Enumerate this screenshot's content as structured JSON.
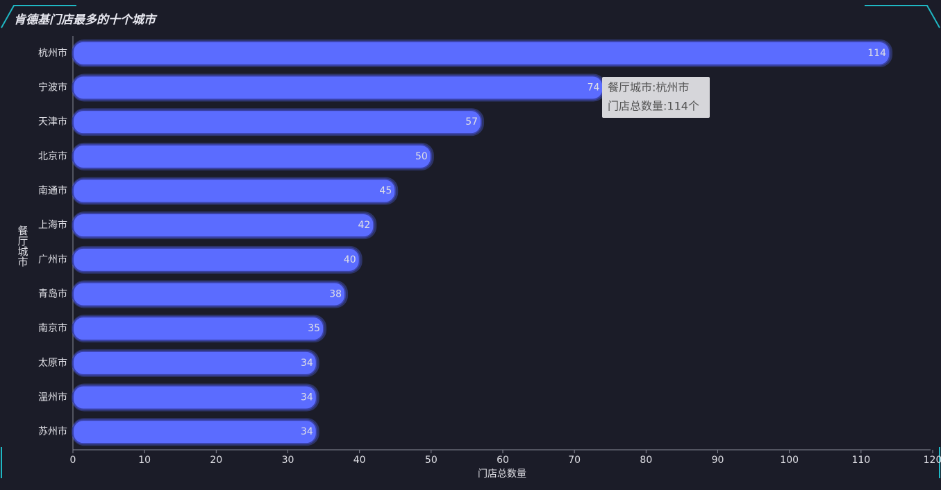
{
  "chart_data": {
    "type": "bar",
    "orientation": "horizontal",
    "title": "肯德基门店最多的十个城市",
    "x_label": "门店总数量",
    "y_label": "餐厅城市",
    "categories": [
      "杭州市",
      "宁波市",
      "天津市",
      "北京市",
      "南通市",
      "上海市",
      "广州市",
      "青岛市",
      "南京市",
      "太原市",
      "温州市",
      "苏州市"
    ],
    "values": [
      114,
      74,
      57,
      50,
      45,
      42,
      40,
      38,
      35,
      34,
      34,
      34
    ],
    "color": "#5b6cff",
    "xlim": [
      0,
      120
    ],
    "xticks": [
      0,
      10,
      20,
      30,
      40,
      50,
      60,
      70,
      80,
      90,
      100,
      110,
      120
    ],
    "tooltip": [
      "餐厅城市:杭州市",
      "门店总数量:114个"
    ]
  }
}
